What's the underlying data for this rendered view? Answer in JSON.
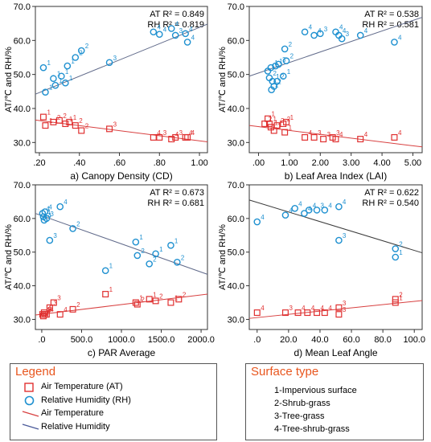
{
  "chart_data": [
    {
      "type": "scatter",
      "panel_label": "a) Canopy Density (CD)",
      "ylabel": "AT/℃ and RH/%",
      "xlim": [
        0.18,
        1.04
      ],
      "ylim": [
        27,
        70
      ],
      "xticks": [
        0.2,
        0.4,
        0.6,
        0.8,
        1.0
      ],
      "xtick_labels": [
        ".20",
        ".40",
        ".60",
        ".80",
        "1.00"
      ],
      "yticks": [
        30,
        40,
        50,
        60,
        70
      ],
      "ytick_labels": [
        "30.0",
        "40.0",
        "50.0",
        "60.0",
        "70.0"
      ],
      "stats": [
        "AT R² = 0.849",
        "RH R² = 0.819"
      ],
      "series": [
        {
          "name": "Relative Humidity (RH)",
          "marker": "circle",
          "color": "#1e90d0",
          "points": [
            [
              0.22,
              52.0,
              "1"
            ],
            [
              0.23,
              44.8,
              "1"
            ],
            [
              0.27,
              48.8,
              "1"
            ],
            [
              0.28,
              46.8,
              "1"
            ],
            [
              0.31,
              49.5,
              "1"
            ],
            [
              0.33,
              47.5,
              "1"
            ],
            [
              0.34,
              52.5,
              "1"
            ],
            [
              0.38,
              55.0,
              "2"
            ],
            [
              0.41,
              57.0,
              "2"
            ],
            [
              0.55,
              53.5,
              "3"
            ],
            [
              0.77,
              62.5,
              "4"
            ],
            [
              0.8,
              61.8,
              "4"
            ],
            [
              0.86,
              63.5,
              "4"
            ],
            [
              0.88,
              61.5,
              "3"
            ],
            [
              0.93,
              62.0,
              "4"
            ],
            [
              0.94,
              59.5,
              "4"
            ]
          ]
        },
        {
          "name": "Air Temperature (AT)",
          "marker": "square",
          "color": "#e03030",
          "points": [
            [
              0.22,
              37.5,
              "1"
            ],
            [
              0.23,
              35.0,
              "1"
            ],
            [
              0.27,
              36.0,
              "2"
            ],
            [
              0.3,
              36.5,
              "2"
            ],
            [
              0.33,
              35.5,
              "1"
            ],
            [
              0.35,
              36.0,
              "1"
            ],
            [
              0.38,
              35.0,
              "2"
            ],
            [
              0.41,
              33.5,
              "2"
            ],
            [
              0.55,
              34.0,
              "3"
            ],
            [
              0.77,
              31.5,
              "4"
            ],
            [
              0.8,
              31.5,
              "3"
            ],
            [
              0.86,
              31.0,
              "4"
            ],
            [
              0.88,
              31.5,
              "3"
            ],
            [
              0.93,
              31.5,
              "4"
            ],
            [
              0.94,
              31.5,
              "4"
            ]
          ]
        }
      ],
      "fits": [
        {
          "name": "Relative Humidity",
          "color": "#606a8a",
          "x": [
            0.18,
            1.04
          ],
          "y": [
            44.2,
            64.8
          ]
        },
        {
          "name": "Air Temperature",
          "color": "#d84040",
          "x": [
            0.18,
            1.04
          ],
          "y": [
            36.6,
            30.2
          ]
        }
      ]
    },
    {
      "type": "scatter",
      "panel_label": "b) Leaf Area Index (LAI)",
      "ylabel": "AT/℃ and RH/%",
      "xlim": [
        -0.3,
        5.3
      ],
      "ylim": [
        27,
        70
      ],
      "xticks": [
        0,
        1,
        2,
        3,
        4,
        5
      ],
      "xtick_labels": [
        ".00",
        "1.00",
        "2.00",
        "3.00",
        "4.00",
        "5.00"
      ],
      "yticks": [
        30,
        40,
        50,
        60,
        70
      ],
      "ytick_labels": [
        "30.0",
        "40.0",
        "50.0",
        "60.0",
        "70.0"
      ],
      "stats": [
        "AT R² = 0.538",
        "RH R² = 0.581"
      ],
      "series": [
        {
          "name": "Relative Humidity (RH)",
          "marker": "circle",
          "color": "#1e90d0",
          "points": [
            [
              0.3,
              51.0,
              "1"
            ],
            [
              0.35,
              49.0,
              "2"
            ],
            [
              0.4,
              52.0,
              "1"
            ],
            [
              0.42,
              45.5,
              "2"
            ],
            [
              0.45,
              48.0,
              "1"
            ],
            [
              0.5,
              46.5,
              "2"
            ],
            [
              0.55,
              52.5,
              "1"
            ],
            [
              0.6,
              48.0,
              "2"
            ],
            [
              0.65,
              53.0,
              "3"
            ],
            [
              0.8,
              49.5,
              "1"
            ],
            [
              0.85,
              57.5,
              "2"
            ],
            [
              0.9,
              54.0,
              "2"
            ],
            [
              1.5,
              62.5,
              "4"
            ],
            [
              1.8,
              61.5,
              "4"
            ],
            [
              2.0,
              62.0,
              "3"
            ],
            [
              2.5,
              62.5,
              "4"
            ],
            [
              2.7,
              60.5,
              "3"
            ],
            [
              3.3,
              61.5,
              "4"
            ],
            [
              4.4,
              59.5,
              "4"
            ],
            [
              2.6,
              61.5,
              "4"
            ]
          ]
        },
        {
          "name": "Air Temperature (AT)",
          "marker": "square",
          "color": "#e03030",
          "points": [
            [
              0.2,
              35.5,
              "2"
            ],
            [
              0.3,
              37.0,
              "1"
            ],
            [
              0.35,
              35.5,
              "1"
            ],
            [
              0.4,
              34.5,
              "1"
            ],
            [
              0.5,
              33.5,
              "1"
            ],
            [
              0.6,
              35.0,
              "2"
            ],
            [
              0.8,
              35.5,
              "2"
            ],
            [
              0.9,
              36.0,
              "1"
            ],
            [
              0.85,
              33.0,
              "1"
            ],
            [
              1.5,
              31.5,
              "4"
            ],
            [
              1.8,
              31.5,
              "3"
            ],
            [
              2.1,
              31.0,
              "3"
            ],
            [
              2.4,
              31.5,
              "3"
            ],
            [
              2.5,
              31.0,
              "4"
            ],
            [
              3.3,
              31.0,
              "4"
            ],
            [
              4.4,
              31.5,
              "4"
            ]
          ]
        }
      ],
      "fits": [
        {
          "name": "Relative Humidity",
          "color": "#606a8a",
          "x": [
            -0.3,
            5.3
          ],
          "y": [
            49.5,
            66.8
          ]
        },
        {
          "name": "Air Temperature",
          "color": "#d84040",
          "x": [
            -0.3,
            5.3
          ],
          "y": [
            35.0,
            28.7
          ]
        }
      ]
    },
    {
      "type": "scatter",
      "panel_label": "c) PAR Average",
      "ylabel": "AT/℃ and RH/%",
      "xlim": [
        -80,
        2080
      ],
      "ylim": [
        27,
        70
      ],
      "xticks": [
        0,
        500,
        1000,
        1500,
        2000
      ],
      "xtick_labels": [
        ".0",
        "500.0",
        "1000.0",
        "1500.0",
        "2000.0"
      ],
      "yticks": [
        30,
        40,
        50,
        60,
        70
      ],
      "ytick_labels": [
        "30.0",
        "40.0",
        "50.0",
        "60.0",
        "70.0"
      ],
      "stats": [
        "AT R² = 0.673",
        "RH R² = 0.681"
      ],
      "series": [
        {
          "name": "Relative Humidity (RH)",
          "marker": "circle",
          "color": "#1e90d0",
          "points": [
            [
              10,
              61.5,
              "4"
            ],
            [
              20,
              60.5,
              "4"
            ],
            [
              30,
              59.5,
              "4"
            ],
            [
              40,
              62.0,
              "4"
            ],
            [
              60,
              60.0,
              "3"
            ],
            [
              100,
              53.5,
              "3"
            ],
            [
              230,
              63.5,
              "4"
            ],
            [
              390,
              57.0,
              "2"
            ],
            [
              800,
              44.5,
              "1"
            ],
            [
              1180,
              53.0,
              "1"
            ],
            [
              1200,
              49.0,
              "2"
            ],
            [
              1350,
              46.5,
              "2"
            ],
            [
              1430,
              49.5,
              "1"
            ],
            [
              1620,
              52.0,
              "1"
            ],
            [
              1700,
              47.0,
              "2"
            ]
          ]
        },
        {
          "name": "Air Temperature (AT)",
          "marker": "square",
          "color": "#e03030",
          "points": [
            [
              10,
              31.5,
              "4"
            ],
            [
              20,
              31.0,
              "4"
            ],
            [
              30,
              32.0,
              "4"
            ],
            [
              40,
              31.5,
              "3"
            ],
            [
              60,
              31.5,
              "4"
            ],
            [
              100,
              33.5,
              "3"
            ],
            [
              150,
              35.0,
              "3"
            ],
            [
              230,
              31.5,
              "4"
            ],
            [
              390,
              33.0,
              "2"
            ],
            [
              800,
              37.5,
              "1"
            ],
            [
              1180,
              35.0,
              "1"
            ],
            [
              1200,
              34.5,
              "2"
            ],
            [
              1350,
              36.0,
              "1"
            ],
            [
              1430,
              35.5,
              "2"
            ],
            [
              1620,
              35.0,
              "1"
            ],
            [
              1720,
              36.0,
              "2"
            ]
          ]
        }
      ],
      "fits": [
        {
          "name": "Relative Humidity",
          "color": "#606a8a",
          "x": [
            -80,
            2080
          ],
          "y": [
            61.5,
            43.4
          ]
        },
        {
          "name": "Air Temperature",
          "color": "#d84040",
          "x": [
            -80,
            2080
          ],
          "y": [
            31.3,
            37.5
          ]
        }
      ]
    },
    {
      "type": "scatter",
      "panel_label": "d) Mean Leaf Angle",
      "ylabel": "AT/℃ and RH/%",
      "xlim": [
        -5,
        105
      ],
      "ylim": [
        27,
        70
      ],
      "xticks": [
        0,
        20,
        40,
        60,
        80,
        100
      ],
      "xtick_labels": [
        ".0",
        "20.0",
        "40.0",
        "60.0",
        "80.0",
        "100.0"
      ],
      "yticks": [
        30,
        40,
        50,
        60,
        70
      ],
      "ytick_labels": [
        "30.0",
        "40.0",
        "50.0",
        "60.0",
        "70.0"
      ],
      "stats": [
        "AT R² = 0.622",
        "RH R² = 0.540"
      ],
      "series": [
        {
          "name": "Relative Humidity (RH)",
          "marker": "circle",
          "color": "#1e90d0",
          "points": [
            [
              0,
              59.0,
              "4"
            ],
            [
              18,
              61.0,
              "4"
            ],
            [
              24,
              63.0,
              "4"
            ],
            [
              30,
              61.5,
              "4"
            ],
            [
              33,
              62.5,
              "4"
            ],
            [
              38,
              62.5,
              "3"
            ],
            [
              43,
              62.5,
              "4"
            ],
            [
              52,
              63.5,
              "4"
            ],
            [
              52,
              53.5,
              "3"
            ],
            [
              88,
              51.0,
              "2"
            ],
            [
              88,
              48.5,
              "1"
            ]
          ]
        },
        {
          "name": "Air Temperature (AT)",
          "marker": "square",
          "color": "#e03030",
          "points": [
            [
              0,
              32.0,
              "4"
            ],
            [
              18,
              32.0,
              "3"
            ],
            [
              26,
              32.0,
              "4"
            ],
            [
              32,
              32.0,
              "4"
            ],
            [
              38,
              32.0,
              "4"
            ],
            [
              43,
              32.0,
              "4"
            ],
            [
              52,
              33.5,
              "3"
            ],
            [
              52,
              31.5,
              "3"
            ],
            [
              88,
              36.0,
              "2"
            ],
            [
              88,
              35.0,
              "1"
            ]
          ]
        }
      ],
      "fits": [
        {
          "name": "Relative Humidity",
          "color": "#3a3a3a",
          "x": [
            -5,
            105
          ],
          "y": [
            65.5,
            49.8
          ]
        },
        {
          "name": "Air Temperature",
          "color": "#d84040",
          "x": [
            -5,
            105
          ],
          "y": [
            30.3,
            35.6
          ]
        }
      ]
    }
  ],
  "legend": {
    "title": "Legend",
    "items": [
      {
        "label": "Air Temperature (AT)",
        "symbol": "square"
      },
      {
        "label": "Relative Humidity (RH)",
        "symbol": "circle"
      },
      {
        "label": "Air Temperature",
        "symbol": "red-line"
      },
      {
        "label": "Relative Humidity",
        "symbol": "blue-line"
      }
    ]
  },
  "surface_type": {
    "title": "Surface type",
    "items": [
      "1-Impervious surface",
      "2-Shrub-grass",
      "3-Tree-grass",
      "4-Tree-shrub-grass"
    ]
  },
  "colors": {
    "rh": "#1e90d0",
    "at": "#e03030",
    "accent": "#e8561e"
  }
}
